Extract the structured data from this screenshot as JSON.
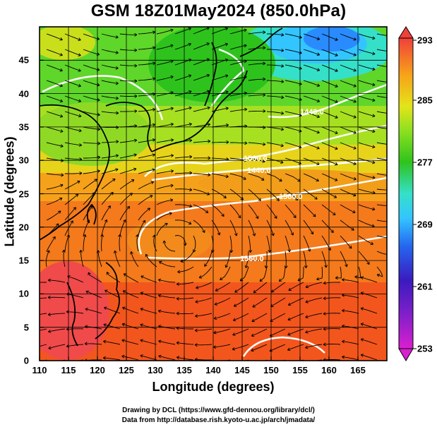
{
  "title": "GSM 18Z01May2024 (850.0hPa)",
  "xlabel": "Longitude (degrees)",
  "ylabel": "Latitude  (degrees)",
  "x_ticks": [
    "110",
    "115",
    "120",
    "125",
    "130",
    "135",
    "140",
    "145",
    "150",
    "155",
    "160",
    "165"
  ],
  "y_ticks": [
    "0",
    "5",
    "10",
    "15",
    "20",
    "25",
    "30",
    "35",
    "40",
    "45"
  ],
  "colorbar_ticks": [
    "253",
    "261",
    "269",
    "277",
    "285",
    "293"
  ],
  "credits": [
    "Drawing by DCL (https://www.gfd-dennou.org/library/dcl/)",
    "Data from http://database.rish.kyoto-u.ac.jp/arch/jmadata/"
  ],
  "map_data": {
    "field": "temperature_K",
    "x_range": [
      110,
      170
    ],
    "y_range": [
      0,
      50
    ],
    "color_range": [
      253,
      293
    ],
    "contour_labels": [
      "1440.0",
      "1500.0",
      "1560.0"
    ],
    "colormap": [
      "#d91fcf",
      "#3a1bbf",
      "#2c7dff",
      "#3fd8e8",
      "#2ec31c",
      "#7fe021",
      "#e6e61a",
      "#f7a419",
      "#f35b1c",
      "#f54b4b"
    ]
  }
}
